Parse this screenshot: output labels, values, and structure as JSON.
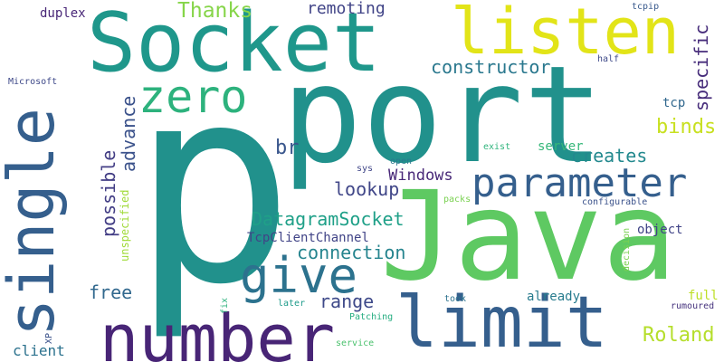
{
  "words": [
    {
      "text": "port",
      "color": "#21918c"
    },
    {
      "text": "p",
      "color": "#21918c"
    },
    {
      "text": "Java",
      "color": "#5ec962"
    },
    {
      "text": "Socket",
      "color": "#1f978b"
    },
    {
      "text": "listen",
      "color": "#e2e418"
    },
    {
      "text": "number",
      "color": "#482576"
    },
    {
      "text": "limit",
      "color": "#355f8d"
    },
    {
      "text": "single",
      "color": "#355f8d"
    },
    {
      "text": "zero",
      "color": "#2db27d"
    },
    {
      "text": "give",
      "color": "#2c728e"
    },
    {
      "text": "parameter",
      "color": "#355f8d"
    },
    {
      "text": "specific",
      "color": "#472d7b"
    },
    {
      "text": "constructor",
      "color": "#2a788e"
    },
    {
      "text": "Thanks",
      "color": "#86d549"
    },
    {
      "text": "remoting",
      "color": "#414487"
    },
    {
      "text": "duplex",
      "color": "#482677"
    },
    {
      "text": "binds",
      "color": "#c8e020"
    },
    {
      "text": "creates",
      "color": "#23898e"
    },
    {
      "text": "br",
      "color": "#39568c"
    },
    {
      "text": "advance",
      "color": "#3b528b"
    },
    {
      "text": "possible",
      "color": "#433e85"
    },
    {
      "text": "Windows",
      "color": "#482878"
    },
    {
      "text": "lookup",
      "color": "#404688"
    },
    {
      "text": "DatagramSocket",
      "color": "#1fa088"
    },
    {
      "text": "TcpClientChannel",
      "color": "#414487"
    },
    {
      "text": "connection",
      "color": "#25848e"
    },
    {
      "text": "range",
      "color": "#3e4989"
    },
    {
      "text": "free",
      "color": "#31688e"
    },
    {
      "text": "Roland",
      "color": "#b5de2b"
    },
    {
      "text": "client",
      "color": "#2c728e"
    },
    {
      "text": "already",
      "color": "#287c8e"
    },
    {
      "text": "server",
      "color": "#35b779"
    },
    {
      "text": "tcp",
      "color": "#31688e"
    },
    {
      "text": "object",
      "color": "#414487"
    },
    {
      "text": "configurable",
      "color": "#3b528b"
    },
    {
      "text": "packs",
      "color": "#7ad151"
    },
    {
      "text": "half",
      "color": "#3e4989"
    },
    {
      "text": "tcpip",
      "color": "#38598c"
    },
    {
      "text": "exist",
      "color": "#2fb47c"
    },
    {
      "text": "open",
      "color": "#2a788e"
    },
    {
      "text": "sys",
      "color": "#404688"
    },
    {
      "text": "Microsoft",
      "color": "#3e4989"
    },
    {
      "text": "unspecified",
      "color": "#a0da39"
    },
    {
      "text": "fix",
      "color": "#2db27d"
    },
    {
      "text": "later",
      "color": "#1e9b8a"
    },
    {
      "text": "Patching",
      "color": "#26ad81"
    },
    {
      "text": "took",
      "color": "#2c728e"
    },
    {
      "text": "full",
      "color": "#bddf26"
    },
    {
      "text": "rumoured",
      "color": "#46337e"
    },
    {
      "text": "decision",
      "color": "#7ad151"
    },
    {
      "text": "service",
      "color": "#4ac16d"
    },
    {
      "text": "XP",
      "color": "#3b528b"
    }
  ]
}
